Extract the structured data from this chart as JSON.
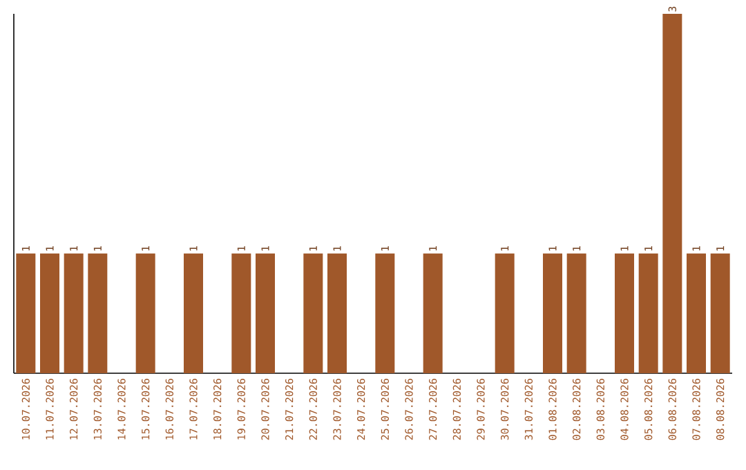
{
  "chart_data": {
    "type": "bar",
    "categories": [
      "10.07.2026",
      "11.07.2026",
      "12.07.2026",
      "13.07.2026",
      "14.07.2026",
      "15.07.2026",
      "16.07.2026",
      "17.07.2026",
      "18.07.2026",
      "19.07.2026",
      "20.07.2026",
      "21.07.2026",
      "22.07.2026",
      "23.07.2026",
      "24.07.2026",
      "25.07.2026",
      "26.07.2026",
      "27.07.2026",
      "28.07.2026",
      "29.07.2026",
      "30.07.2026",
      "31.07.2026",
      "01.08.2026",
      "02.08.2026",
      "03.08.2026",
      "04.08.2026",
      "05.08.2026",
      "06.08.2026",
      "07.08.2026",
      "08.08.2026"
    ],
    "values": [
      1,
      1,
      1,
      1,
      0,
      1,
      0,
      1,
      0,
      1,
      1,
      0,
      1,
      1,
      0,
      1,
      0,
      1,
      0,
      0,
      1,
      0,
      1,
      1,
      0,
      1,
      1,
      3,
      1,
      1
    ],
    "value_labels": [
      "1",
      "1",
      "1",
      "1",
      null,
      "1",
      null,
      "1",
      null,
      "1",
      "1",
      null,
      "1",
      "1",
      null,
      "1",
      null,
      "1",
      null,
      null,
      "1",
      null,
      "1",
      "1",
      null,
      "1",
      "1",
      "3",
      "1",
      "1"
    ],
    "color": "#a0582a",
    "grid": false
  }
}
